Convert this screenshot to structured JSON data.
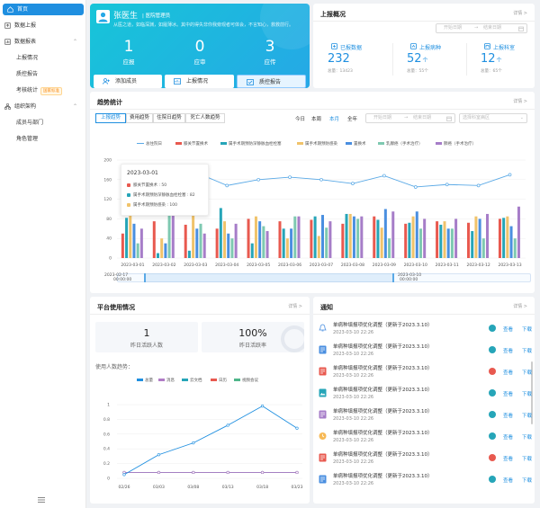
{
  "sidebar": {
    "items": [
      {
        "label": "首页"
      },
      {
        "label": "数据上报"
      },
      {
        "label": "数据报表"
      },
      {
        "label": "上报情况"
      },
      {
        "label": "质控报告"
      },
      {
        "label": "考核统计",
        "badge": "国家标准"
      },
      {
        "label": "组织架构"
      },
      {
        "label": "成员与部门"
      },
      {
        "label": "角色管理"
      }
    ]
  },
  "profile": {
    "name": "张医生",
    "role": "医院管理员",
    "quote": "从医之道，如临深渊，如履薄冰。其中的得失非你我旁观者可体会，不言知心，救救前行。",
    "stats": [
      {
        "value": "1",
        "label": "应报"
      },
      {
        "value": "0",
        "label": "应审"
      },
      {
        "value": "3",
        "label": "应传"
      }
    ],
    "buttons": [
      "添加成员",
      "上报情况",
      "质控报告"
    ]
  },
  "report": {
    "title": "上报概况",
    "more": "详情 >",
    "start_placeholder": "开始日期",
    "end_placeholder": "结束日期",
    "range_sep": "→",
    "items": [
      {
        "label": "已报数据",
        "value": "232",
        "unit": "",
        "total": "总量：13423"
      },
      {
        "label": "上报病种",
        "value": "52",
        "unit": "个",
        "total": "总量：55个"
      },
      {
        "label": "上报科室",
        "value": "12",
        "unit": "个",
        "total": "总量：65个"
      }
    ]
  },
  "trend": {
    "title": "趋势统计",
    "more": "详情 >",
    "tabs": [
      "上报趋势",
      "费用趋势",
      "住院日趋势",
      "死亡人数趋势"
    ],
    "timeframes": [
      "今日",
      "本周",
      "本月",
      "全年"
    ],
    "start_placeholder": "开始日期",
    "end_placeholder": "结束日期",
    "range_sep": "→",
    "dept_placeholder": "选择科室病区",
    "zoom_start": "2023-02-17\n00:00:00",
    "zoom_start_date": "2023-02-17",
    "zoom_start_time": "00:00:00",
    "zoom_end_date": "2023-03-10",
    "zoom_end_time": "00:00:00",
    "tooltip": {
      "date": "2023-03-01",
      "rows": [
        {
          "label": "膝关节置换术 : 50",
          "color": "#e8594f"
        },
        {
          "label": "属手术期预防深静脉血栓栓塞 : 82",
          "color": "#26a5b8"
        },
        {
          "label": "属手术期预防感染 : 100",
          "color": "#f0c36b"
        }
      ]
    }
  },
  "chart_data": {
    "type": "bar",
    "categories": [
      "2023-03-01",
      "2023-03-02",
      "2023-03-03",
      "2023-03-04",
      "2023-03-05",
      "2023-03-06",
      "2023-03-07",
      "2023-03-08",
      "2023-03-09",
      "2023-03-10",
      "2023-03-11",
      "2023-03-12",
      "2023-03-13"
    ],
    "ylim": [
      0,
      200
    ],
    "yticks": [
      0,
      40,
      80,
      120,
      160,
      200
    ],
    "legend_position": "top",
    "series": [
      {
        "name": "膝关节置换术",
        "color": "#e8594f",
        "values": [
          50,
          75,
          68,
          60,
          80,
          75,
          78,
          70,
          85,
          70,
          75,
          72,
          80
        ]
      },
      {
        "name": "属手术期预防深静脉血栓栓塞",
        "color": "#26a5b8",
        "values": [
          82,
          10,
          15,
          102,
          30,
          60,
          85,
          90,
          78,
          72,
          68,
          55,
          82
        ]
      },
      {
        "name": "属手术期预防感染",
        "color": "#f0c36b",
        "values": [
          100,
          40,
          95,
          75,
          85,
          40,
          45,
          90,
          62,
          85,
          75,
          85,
          85
        ]
      },
      {
        "name": "置换术",
        "color": "#4a8fe0",
        "values": [
          70,
          30,
          60,
          50,
          75,
          60,
          88,
          85,
          100,
          95,
          60,
          80,
          65
        ]
      },
      {
        "name": "乳腺癌（手术治疗）",
        "color": "#7ec9b1",
        "values": [
          30,
          90,
          70,
          40,
          65,
          85,
          62,
          80,
          40,
          60,
          60,
          40,
          40
        ]
      },
      {
        "name": "肺癌（手术治疗）",
        "color": "#a67dc8",
        "values": [
          60,
          90,
          50,
          70,
          55,
          85,
          75,
          85,
          95,
          80,
          80,
          90,
          105
        ]
      },
      {
        "name": "总住院日",
        "type": "line",
        "color": "#5aa9e6",
        "values": [
          150,
          140,
          175,
          148,
          160,
          165,
          160,
          152,
          168,
          145,
          150,
          148,
          170
        ]
      }
    ]
  },
  "usage": {
    "title": "平台使用情况",
    "more": "详情 >",
    "kpis": [
      {
        "value": "1",
        "label": "昨日活跃人数"
      },
      {
        "value": "100%",
        "label": "昨日活跃率"
      }
    ],
    "subtitle": "使用人数趋势：",
    "chart_data": {
      "type": "line",
      "categories": [
        "02/26",
        "03/03",
        "03/08",
        "03/13",
        "03/18",
        "03/23"
      ],
      "ylim": [
        0,
        1
      ],
      "yticks": [
        0,
        0.2,
        0.4,
        0.6,
        0.8,
        1
      ],
      "series": [
        {
          "name": "总量",
          "color": "#1f8fe0",
          "values": [
            0.05,
            0.32,
            0.48,
            0.72,
            0.98,
            0.68
          ]
        },
        {
          "name": "消息",
          "color": "#b07cc6",
          "values": [
            0.08,
            0.08,
            0.08,
            0.08,
            0.08,
            0.08
          ]
        },
        {
          "name": "云文档",
          "color": "#26a5b8",
          "values": [
            0.08,
            0.08,
            0.08,
            0.08,
            0.08,
            0.08
          ]
        },
        {
          "name": "日历",
          "color": "#e8594f",
          "values": [
            0.08,
            0.08,
            0.08,
            0.08,
            0.08,
            0.08
          ]
        },
        {
          "name": "视频会议",
          "color": "#4fb68a",
          "values": [
            0.08,
            0.08,
            0.08,
            0.08,
            0.08,
            0.08
          ]
        }
      ]
    }
  },
  "notices": {
    "title": "通知",
    "more": "详情 >",
    "view_label": "查看",
    "download_label": "下载",
    "items": [
      {
        "title": "单病种填报项优化调整（更新于2023.3.10）",
        "time": "2023-03-10 22:26",
        "icon_color": "#4a8fe0",
        "dot_color": "#26a5b8"
      },
      {
        "title": "单病种填报项优化调整（更新于2023.3.10）",
        "time": "2023-03-10 22:26",
        "icon_color": "#4a8fe0",
        "dot_color": "#26a5b8"
      },
      {
        "title": "单病种填报项优化调整（更新于2023.3.10）",
        "time": "2023-03-10 22:26",
        "icon_color": "#e8594f",
        "dot_color": "#e8594f"
      },
      {
        "title": "单病种填报项优化调整（更新于2023.3.10）",
        "time": "2023-03-10 22:26",
        "icon_color": "#26a5b8",
        "dot_color": "#26a5b8"
      },
      {
        "title": "单病种填报项优化调整（更新于2023.3.10）",
        "time": "2023-03-10 22:26",
        "icon_color": "#a67dc8",
        "dot_color": "#26a5b8"
      },
      {
        "title": "单病种填报项优化调整（更新于2023.3.10）",
        "time": "2023-03-10 22:26",
        "icon_color": "#f0a040",
        "dot_color": "#26a5b8"
      },
      {
        "title": "单病种填报项优化调整（更新于2023.3.10）",
        "time": "2023-03-10 22:26",
        "icon_color": "#e8594f",
        "dot_color": "#e8594f"
      },
      {
        "title": "单病种填报项优化调整（更新于2023.3.10）",
        "time": "2023-03-10 22:26",
        "icon_color": "#4a8fe0",
        "dot_color": "#26a5b8"
      }
    ]
  }
}
